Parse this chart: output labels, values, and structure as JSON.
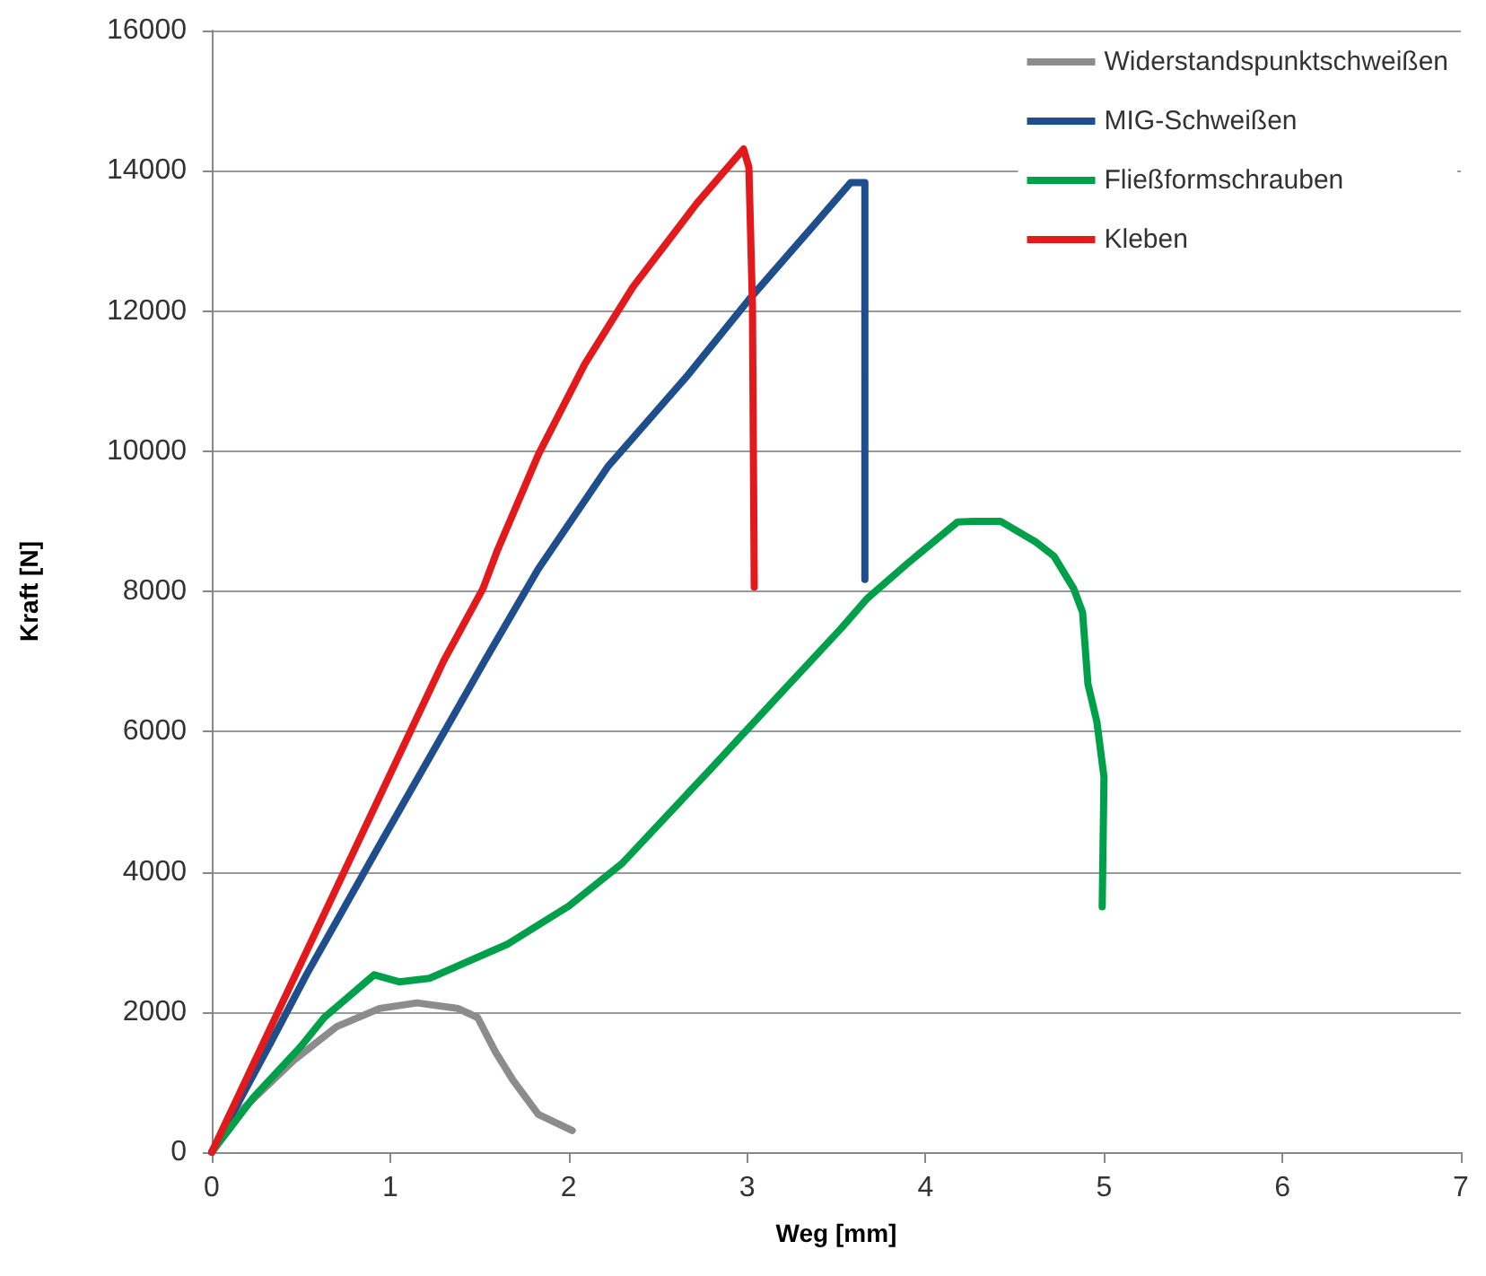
{
  "chart_data": {
    "type": "line",
    "xlabel": "Weg [mm]",
    "ylabel": "Kraft [N]",
    "xlim": [
      0,
      7
    ],
    "xticks": [
      0,
      1,
      2,
      3,
      4,
      5,
      6,
      7
    ],
    "ylim": [
      0,
      16000
    ],
    "yticks": [
      0,
      2000,
      4000,
      6000,
      8000,
      10000,
      12000,
      14000,
      16000
    ],
    "grid": "y",
    "legend": "top right",
    "marker": "none",
    "line_style": "solid",
    "series": [
      {
        "name": "Widerstandspunktschweißen",
        "color": "#8c8c8c",
        "x": [
          0,
          0.13,
          0.46,
          0.7,
          0.94,
          1.15,
          1.38,
          1.49,
          1.59,
          1.69,
          1.83,
          2.02
        ],
        "values": [
          0,
          510,
          1310,
          1790,
          2050,
          2130,
          2050,
          1920,
          1430,
          1020,
          540,
          310
        ]
      },
      {
        "name": "MIG-Schweißen",
        "color": "#1f4e8c",
        "x": [
          0,
          0.33,
          0.53,
          0.94,
          1.53,
          1.83,
          2.22,
          2.66,
          3.01,
          3.38,
          3.58,
          3.66,
          3.66,
          3.66
        ],
        "values": [
          0,
          1560,
          2530,
          4380,
          7010,
          8320,
          9780,
          11060,
          12160,
          13240,
          13830,
          13830,
          12080,
          8170
        ]
      },
      {
        "name": "Fließformschrauben",
        "color": "#00a04a",
        "x": [
          0,
          0.23,
          0.5,
          0.63,
          0.91,
          1.05,
          1.22,
          1.66,
          2.0,
          2.3,
          2.79,
          3.19,
          3.53,
          3.67,
          3.9,
          4.18,
          4.27,
          4.42,
          4.62,
          4.72,
          4.83,
          4.88,
          4.91,
          4.96,
          5.0,
          4.99
        ],
        "values": [
          0,
          770,
          1510,
          1920,
          2530,
          2430,
          2480,
          2970,
          3510,
          4120,
          5450,
          6550,
          7480,
          7890,
          8400,
          8990,
          9000,
          9000,
          8700,
          8500,
          8040,
          7700,
          6680,
          6140,
          5350,
          3500
        ]
      },
      {
        "name": "Kleben",
        "color": "#e31a1c",
        "x": [
          0,
          1.3,
          1.52,
          1.6,
          1.83,
          2.09,
          2.36,
          2.72,
          2.98,
          3.01,
          3.03,
          3.04
        ],
        "values": [
          0,
          7010,
          8040,
          8580,
          9950,
          11240,
          12340,
          13540,
          14310,
          14050,
          12080,
          8060
        ]
      }
    ]
  }
}
